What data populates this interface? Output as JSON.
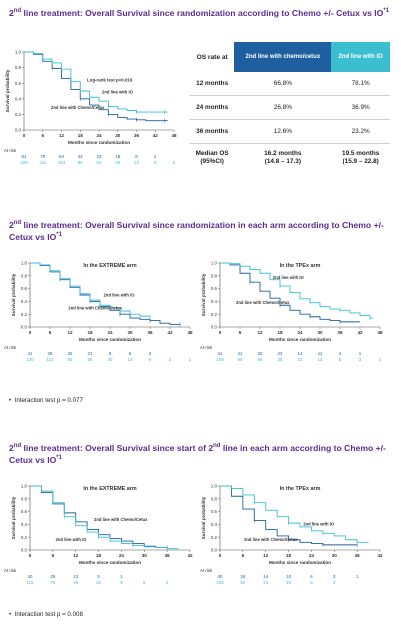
{
  "colors": {
    "title": "#5a2d91",
    "chemo": "#1f5fa0",
    "io": "#3bbfd0",
    "header1": "#1f5fa0",
    "header2": "#3bbfd0"
  },
  "sections": [
    {
      "title_a": "2",
      "title_sup": "nd",
      "title_b": " line treatment: Overall Survival since randomization according to Chemo +/- Cetux vs IO",
      "title_ref": "*1"
    },
    {
      "title_a": "2",
      "title_sup": "nd",
      "title_b": " line treatment: Overall Survival since randomization in each arm according to Chemo +/- Cetux vs IO",
      "title_ref": "*1"
    },
    {
      "title_a": "2",
      "title_sup": "nd",
      "title_b": " line treatment: Overall Survival since start of 2",
      "title_sup2": "nd",
      "title_c": " line in each arm according to Chemo +/- Cetux vs IO",
      "title_ref": "*1"
    }
  ],
  "bullets": {
    "b1": "Interaction test p = 0.077",
    "b2": "Interaction test p = 0.008"
  },
  "table": {
    "header_row": "OS rate at",
    "header_chemo": "2nd line with chemo/cetux",
    "header_io": "2nd line with IO",
    "rows": [
      {
        "label": "12 months",
        "chemo": "66.8%",
        "io": "78.1%"
      },
      {
        "label": "24 months",
        "chemo": "26.8%",
        "io": "36.9%"
      },
      {
        "label": "36 months",
        "chemo": "12.6%",
        "io": "23.2%"
      }
    ],
    "median": {
      "label1": "Median OS",
      "label2": "(95%CI)",
      "chemo1": "16.2 months",
      "chemo2": "(14.8 – 17.3)",
      "io1": "19.5 months",
      "io2": "(15.9 – 22.8)"
    }
  },
  "chart_data": [
    {
      "type": "line",
      "id": "c1",
      "title": "",
      "xlabel": "Months since randomization",
      "ylabel": "Survival probability",
      "xlim": [
        0,
        48
      ],
      "ylim": [
        0,
        1
      ],
      "xticks": [
        0,
        6,
        12,
        18,
        24,
        30,
        36,
        42,
        48
      ],
      "yticks": [
        "0.0",
        "0.2",
        "0.4",
        "0.6",
        "0.8",
        "1.0"
      ],
      "annotations": {
        "logrank": "Log-rank test p=0.016",
        "io_label": "2nd line with IO",
        "chemo_label": "2nd line with Chemo/Cetux"
      },
      "series": [
        {
          "name": "2nd line with Chemo/Cetux",
          "color": "#1f5fa0",
          "x": [
            0,
            3,
            6,
            9,
            12,
            15,
            18,
            21,
            24,
            27,
            30,
            33,
            36,
            39,
            42,
            45,
            46
          ],
          "y": [
            1.0,
            0.97,
            0.88,
            0.79,
            0.66,
            0.52,
            0.4,
            0.32,
            0.26,
            0.2,
            0.16,
            0.14,
            0.13,
            0.12,
            0.12,
            0.12,
            0.12
          ]
        },
        {
          "name": "2nd line with IO",
          "color": "#3bbfd0",
          "x": [
            0,
            3,
            6,
            9,
            12,
            15,
            18,
            21,
            24,
            27,
            30,
            33,
            36,
            39,
            42,
            45,
            46
          ],
          "y": [
            1.0,
            0.98,
            0.91,
            0.86,
            0.78,
            0.62,
            0.5,
            0.42,
            0.37,
            0.3,
            0.27,
            0.25,
            0.23,
            0.23,
            0.23,
            0.23,
            0.23
          ]
        }
      ],
      "at_risk": {
        "label": "At risk",
        "chemo": [
          "81",
          "79",
          "64",
          "44",
          "23",
          "18",
          "8",
          "2",
          ""
        ],
        "io": [
          "229",
          "211",
          "153",
          "90",
          "52",
          "26",
          "13",
          "5",
          "2"
        ]
      }
    },
    {
      "type": "line",
      "id": "c2",
      "title": "In the EXTREME arm",
      "xlabel": "Months since randomization",
      "ylabel": "Survival probability",
      "xlim": [
        0,
        48
      ],
      "ylim": [
        0,
        1
      ],
      "xticks": [
        0,
        6,
        12,
        18,
        24,
        30,
        36,
        42,
        48
      ],
      "yticks": [
        "0.0",
        "0.2",
        "0.4",
        "0.6",
        "0.8",
        "1.0"
      ],
      "annotations": {
        "io_label": "2nd line with IO",
        "chemo_label": "2nd line with Chemo/Cetux"
      },
      "series": [
        {
          "name": "2nd line with Chemo/Cetux",
          "color": "#1f5fa0",
          "x": [
            0,
            3,
            6,
            9,
            12,
            15,
            18,
            21,
            24,
            27,
            30,
            33,
            36,
            39,
            42,
            45
          ],
          "y": [
            1.0,
            0.96,
            0.86,
            0.74,
            0.62,
            0.5,
            0.4,
            0.32,
            0.26,
            0.2,
            0.14,
            0.12,
            0.1,
            0.06,
            0.04,
            0.04
          ]
        },
        {
          "name": "2nd line with IO",
          "color": "#3bbfd0",
          "x": [
            0,
            3,
            6,
            9,
            12,
            15,
            18,
            21,
            24,
            27,
            30,
            33,
            36
          ],
          "y": [
            1.0,
            0.97,
            0.88,
            0.76,
            0.64,
            0.52,
            0.42,
            0.34,
            0.3,
            0.25,
            0.2,
            0.17,
            0.15
          ]
        }
      ],
      "at_risk": {
        "label": "At risk",
        "chemo": [
          "41",
          "38",
          "32",
          "21",
          "8",
          "6",
          "3",
          "",
          ""
        ],
        "io": [
          "120",
          "112",
          "85",
          "55",
          "30",
          "14",
          "6",
          "2",
          "1"
        ]
      }
    },
    {
      "type": "line",
      "id": "c3",
      "title": "In the TPEx arm",
      "xlabel": "Months since randomization",
      "ylabel": "Survival probability",
      "xlim": [
        0,
        48
      ],
      "ylim": [
        0,
        1
      ],
      "xticks": [
        0,
        6,
        12,
        18,
        24,
        30,
        36,
        42,
        48
      ],
      "yticks": [
        "0.0",
        "0.2",
        "0.4",
        "0.6",
        "0.8",
        "1.0"
      ],
      "annotations": {
        "io_label": "2nd line with IO",
        "chemo_label": "2nd line with Chemo/Cetux"
      },
      "series": [
        {
          "name": "2nd line with Chemo/Cetux",
          "color": "#1f5fa0",
          "x": [
            0,
            3,
            6,
            9,
            12,
            15,
            18,
            21,
            24,
            27,
            30,
            33,
            36,
            39,
            42
          ],
          "y": [
            1.0,
            0.97,
            0.84,
            0.7,
            0.56,
            0.45,
            0.34,
            0.26,
            0.2,
            0.16,
            0.12,
            0.1,
            0.08,
            0.08,
            0.08
          ]
        },
        {
          "name": "2nd line with IO",
          "color": "#3bbfd0",
          "x": [
            0,
            3,
            6,
            9,
            12,
            15,
            18,
            21,
            24,
            27,
            30,
            33,
            36,
            39,
            42,
            45,
            46
          ],
          "y": [
            1.0,
            0.99,
            0.95,
            0.9,
            0.84,
            0.74,
            0.64,
            0.54,
            0.44,
            0.38,
            0.32,
            0.28,
            0.26,
            0.22,
            0.18,
            0.14,
            0.14
          ]
        }
      ],
      "at_risk": {
        "label": "At risk",
        "chemo": [
          "41",
          "41",
          "32",
          "23",
          "14",
          "11",
          "4",
          "1",
          ""
        ],
        "io": [
          "109",
          "99",
          "68",
          "35",
          "22",
          "12",
          "5",
          "3",
          "1"
        ]
      }
    },
    {
      "type": "line",
      "id": "c4",
      "title": "In the EXTREME arm",
      "xlabel": "Months since randomization",
      "ylabel": "Survival probability",
      "xlim": [
        0,
        42
      ],
      "ylim": [
        0,
        1
      ],
      "xticks": [
        0,
        6,
        12,
        18,
        24,
        30,
        36,
        42
      ],
      "yticks": [
        "0.0",
        "0.2",
        "0.4",
        "0.6",
        "0.8",
        "1.0"
      ],
      "annotations": {
        "io_label": "2nd line with IO",
        "chemo_label": "2nd line with Chemo/Cetux"
      },
      "series": [
        {
          "name": "2nd line with Chemo/Cetux",
          "color": "#1f5fa0",
          "x": [
            0,
            3,
            6,
            9,
            12,
            15,
            18,
            21,
            24,
            27,
            30,
            33,
            36
          ],
          "y": [
            1.0,
            0.9,
            0.72,
            0.58,
            0.44,
            0.32,
            0.24,
            0.18,
            0.14,
            0.1,
            0.06,
            0.04,
            0.04
          ]
        },
        {
          "name": "2nd line with IO",
          "color": "#3bbfd0",
          "x": [
            0,
            3,
            6,
            9,
            12,
            15,
            18,
            21,
            24,
            27,
            30,
            33,
            36,
            39
          ],
          "y": [
            1.0,
            0.92,
            0.74,
            0.52,
            0.38,
            0.28,
            0.2,
            0.14,
            0.1,
            0.07,
            0.05,
            0.04,
            0.02,
            0.02
          ]
        }
      ],
      "at_risk": {
        "label": "At risk",
        "chemo": [
          "40",
          "25",
          "13",
          "5",
          "1",
          "",
          "",
          ""
        ],
        "io": [
          "116",
          "76",
          "49",
          "22",
          "9",
          "5",
          "2",
          ""
        ]
      }
    },
    {
      "type": "line",
      "id": "c5",
      "title": "In the TPEx arm",
      "xlabel": "Months since randomization",
      "ylabel": "Survival probability",
      "xlim": [
        0,
        42
      ],
      "ylim": [
        0,
        1
      ],
      "xticks": [
        0,
        6,
        12,
        18,
        24,
        30,
        36,
        42
      ],
      "yticks": [
        "0.0",
        "0.2",
        "0.4",
        "0.6",
        "0.8",
        "1.0"
      ],
      "annotations": {
        "io_label": "2nd line with IO",
        "chemo_label": "2nd line with Chemo/Cetux"
      },
      "series": [
        {
          "name": "2nd line with Chemo/Cetux",
          "color": "#1f5fa0",
          "x": [
            0,
            3,
            6,
            9,
            12,
            15,
            18,
            21,
            24,
            27,
            30,
            33,
            36
          ],
          "y": [
            1.0,
            0.84,
            0.64,
            0.46,
            0.32,
            0.22,
            0.16,
            0.12,
            0.1,
            0.08,
            0.08,
            0.08,
            0.08
          ]
        },
        {
          "name": "2nd line with IO",
          "color": "#3bbfd0",
          "x": [
            0,
            3,
            6,
            9,
            12,
            15,
            18,
            21,
            24,
            27,
            30,
            33,
            36,
            39
          ],
          "y": [
            1.0,
            0.96,
            0.86,
            0.74,
            0.62,
            0.52,
            0.42,
            0.36,
            0.3,
            0.26,
            0.22,
            0.16,
            0.12,
            0.12
          ]
        }
      ],
      "at_risk": {
        "label": "At risk",
        "chemo": [
          "40",
          "26",
          "14",
          "10",
          "6",
          "3",
          "1",
          ""
        ],
        "io": [
          "108",
          "60",
          "23",
          "10",
          "6",
          "3",
          "",
          ""
        ]
      }
    }
  ]
}
